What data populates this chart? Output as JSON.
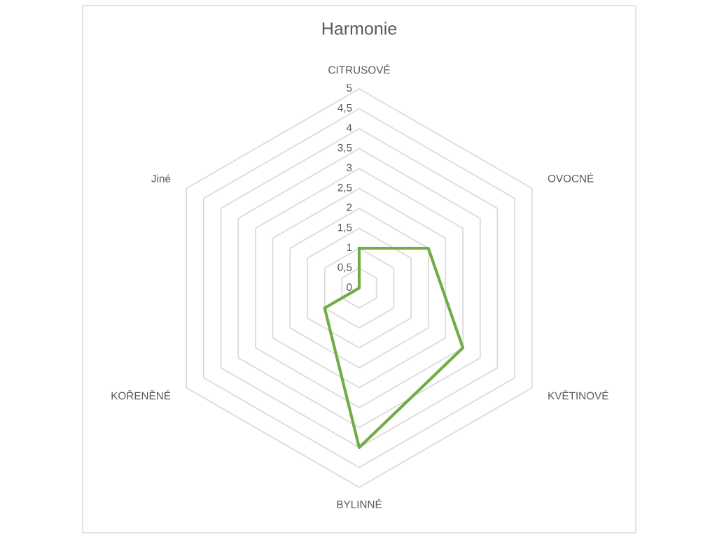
{
  "chart_data": {
    "type": "radar",
    "title": "Harmonie",
    "categories": [
      "CITRUSOVÉ",
      "OVOCNÉ",
      "KVĚTINOVÉ",
      "BYLINNÉ",
      "KOŘENĚNÉ",
      "Jiné"
    ],
    "series": [
      {
        "color": "#70ad47",
        "values": [
          1,
          2,
          3,
          4,
          1,
          0
        ]
      }
    ],
    "ylim": [
      0,
      5
    ],
    "yticks": [
      {
        "value": 0,
        "label": "0"
      },
      {
        "value": 0.5,
        "label": "0,5"
      },
      {
        "value": 1,
        "label": "1"
      },
      {
        "value": 1.5,
        "label": "1,5"
      },
      {
        "value": 2,
        "label": "2"
      },
      {
        "value": 2.5,
        "label": "2,5"
      },
      {
        "value": 3,
        "label": "3"
      },
      {
        "value": 3.5,
        "label": "3,5"
      },
      {
        "value": 4,
        "label": "4"
      },
      {
        "value": 4.5,
        "label": "4,5"
      },
      {
        "value": 5,
        "label": "5"
      }
    ],
    "grid": true
  }
}
